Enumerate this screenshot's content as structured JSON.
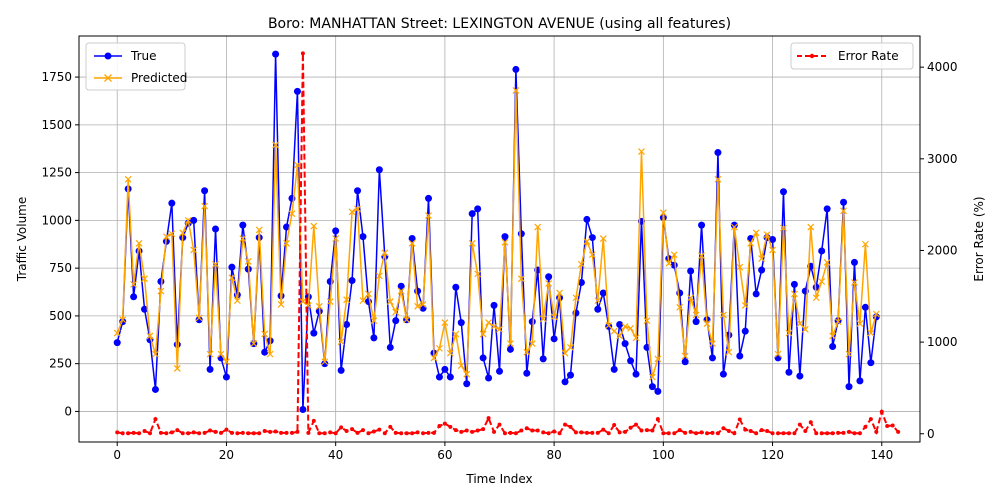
{
  "chart_data": {
    "type": "line",
    "title": "Boro: MANHATTAN Street: LEXINGTON AVENUE (using all features)",
    "xlabel": "Time Index",
    "ylabel": "Traffic Volume",
    "y2label": "Error Rate (%)",
    "xlim": [
      -7,
      147
    ],
    "ylim": [
      -160,
      1965
    ],
    "y2lim": [
      -90,
      4340
    ],
    "x_ticks": [
      0,
      20,
      40,
      60,
      80,
      100,
      120,
      140
    ],
    "y_ticks": [
      0,
      250,
      500,
      750,
      1000,
      1250,
      1500,
      1750
    ],
    "y2_ticks": [
      0,
      1000,
      2000,
      3000,
      4000
    ],
    "grid": true,
    "legend_left": "upper-left",
    "legend_right": "upper-right",
    "series": [
      {
        "name": "True",
        "color": "#0000ff",
        "marker": "circle",
        "axis": "left",
        "values": [
          360,
          470,
          1165,
          600,
          840,
          535,
          375,
          115,
          680,
          890,
          1090,
          350,
          910,
          985,
          1000,
          480,
          1155,
          220,
          955,
          280,
          180,
          755,
          610,
          975,
          745,
          355,
          910,
          310,
          370,
          1870,
          605,
          965,
          1115,
          1675,
          10,
          600,
          410,
          525,
          250,
          680,
          945,
          215,
          455,
          685,
          1155,
          915,
          575,
          385,
          1265,
          810,
          335,
          475,
          655,
          480,
          905,
          630,
          540,
          1115,
          305,
          180,
          220,
          180,
          650,
          465,
          145,
          1035,
          1060,
          280,
          175,
          555,
          210,
          915,
          325,
          1790,
          930,
          200,
          470,
          740,
          275,
          705,
          380,
          595,
          155,
          190,
          515,
          675,
          1005,
          910,
          535,
          620,
          445,
          220,
          455,
          355,
          265,
          195,
          995,
          335,
          130,
          105,
          1015,
          800,
          765,
          620,
          260,
          735,
          470,
          975,
          480,
          280,
          1355,
          195,
          400,
          975,
          290,
          420,
          905,
          615,
          740,
          910,
          900,
          280,
          1150,
          205,
          665,
          185,
          630,
          760,
          650,
          840,
          1060,
          340,
          475,
          1095,
          130,
          780,
          160,
          545,
          255,
          495
        ]
      },
      {
        "name": "Predicted",
        "color": "#ffa500",
        "marker": "x",
        "axis": "left",
        "values": [
          410,
          480,
          1215,
          665,
          880,
          695,
          395,
          300,
          630,
          915,
          930,
          225,
          935,
          1000,
          845,
          490,
          1075,
          300,
          770,
          300,
          260,
          700,
          580,
          905,
          785,
          355,
          950,
          405,
          300,
          1395,
          560,
          880,
          1035,
          1290,
          575,
          555,
          970,
          550,
          260,
          575,
          905,
          365,
          585,
          1045,
          1060,
          580,
          615,
          475,
          710,
          830,
          575,
          520,
          630,
          480,
          880,
          550,
          560,
          1025,
          280,
          330,
          465,
          305,
          405,
          240,
          195,
          880,
          720,
          405,
          465,
          445,
          430,
          885,
          355,
          1680,
          695,
          310,
          355,
          965,
          485,
          670,
          495,
          620,
          305,
          335,
          595,
          770,
          890,
          820,
          580,
          905,
          450,
          420,
          395,
          445,
          435,
          385,
          1360,
          475,
          180,
          275,
          1040,
          775,
          820,
          545,
          290,
          595,
          505,
          815,
          460,
          355,
          1215,
          505,
          310,
          965,
          755,
          555,
          880,
          935,
          800,
          925,
          845,
          300,
          960,
          410,
          615,
          460,
          430,
          965,
          595,
          680,
          780,
          395,
          470,
          1050,
          300,
          675,
          460,
          875,
          410,
          510
        ]
      },
      {
        "name": "Error Rate",
        "color": "#ff0000",
        "marker": "dot",
        "linestyle": "dashed",
        "axis": "right",
        "values": [
          15,
          5,
          5,
          10,
          5,
          30,
          5,
          160,
          10,
          5,
          15,
          40,
          5,
          5,
          15,
          5,
          10,
          35,
          20,
          10,
          45,
          10,
          5,
          10,
          5,
          5,
          5,
          30,
          20,
          25,
          10,
          10,
          10,
          20,
          4150,
          10,
          140,
          5,
          5,
          15,
          5,
          70,
          30,
          50,
          10,
          40,
          5,
          25,
          45,
          5,
          75,
          10,
          5,
          5,
          5,
          15,
          5,
          10,
          10,
          85,
          110,
          75,
          40,
          20,
          35,
          20,
          35,
          50,
          170,
          20,
          100,
          5,
          10,
          5,
          35,
          60,
          35,
          35,
          15,
          5,
          25,
          5,
          100,
          75,
          15,
          15,
          10,
          10,
          10,
          45,
          5,
          95,
          15,
          20,
          65,
          100,
          35,
          40,
          35,
          160,
          5,
          5,
          5,
          40,
          10,
          20,
          5,
          15,
          5,
          10,
          5,
          60,
          30,
          5,
          155,
          45,
          30,
          5,
          40,
          30,
          5,
          5,
          5,
          5,
          5,
          100,
          30,
          125,
          5,
          5,
          5,
          5,
          10,
          10,
          20,
          5,
          5,
          75,
          160,
          20,
          240,
          85,
          90,
          20
        ]
      }
    ]
  }
}
